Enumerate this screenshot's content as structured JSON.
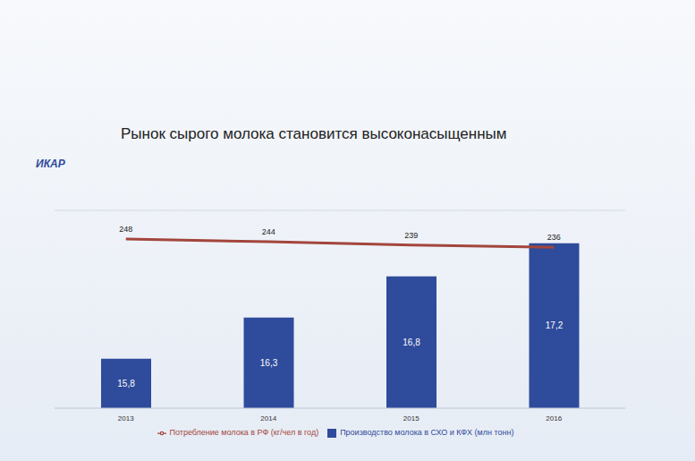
{
  "chart_data": {
    "type": "bar",
    "title": "Рынок сырого молока становится высоконасыщенным",
    "logo": "ИКАР",
    "categories": [
      "2013",
      "2014",
      "2015",
      "2016"
    ],
    "series": [
      {
        "name": "Производство молока в СХО и КФХ (млн тонн)",
        "type": "bar",
        "color": "#2f4b9b",
        "values": [
          15.8,
          16.3,
          16.8,
          17.2
        ],
        "value_labels": [
          "15,8",
          "16,3",
          "16,8",
          "17,2"
        ]
      },
      {
        "name": "Потребление молока в РФ (кг/чел в год)",
        "type": "line",
        "axis": "y2",
        "color": "#a3453c",
        "marker": "none",
        "values": [
          248,
          244,
          239,
          236
        ]
      }
    ],
    "ylim": [
      15.2,
      17.6
    ],
    "yticks": [
      15.2,
      15.8,
      16.4,
      17.0,
      17.6
    ],
    "y2lim": [
      0,
      290
    ],
    "y2ticks": [
      0,
      290
    ],
    "grid": true,
    "data_labels": true,
    "tick_labels": "x",
    "legend": "bottom"
  }
}
